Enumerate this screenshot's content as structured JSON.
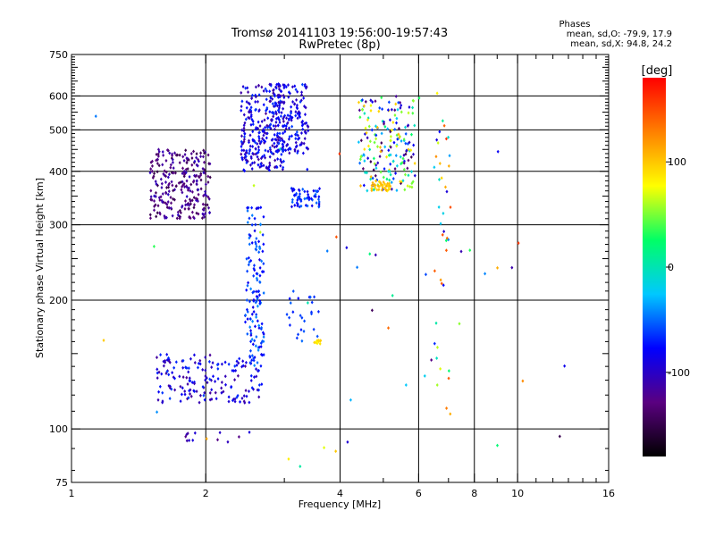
{
  "title": {
    "line1": "Tromsø 20141103 19:56:00-19:57:43",
    "line2": "RwPretec (8p)"
  },
  "stats": {
    "heading": "Phases",
    "o_mode": "mean, sd,O: -79.9, 17.9",
    "x_mode": "mean, sd,X:  94.8, 24.2"
  },
  "chart_data": {
    "type": "scatter",
    "xlabel": "Frequency [MHz]",
    "ylabel": "Stationary phase Virtual Height [km]",
    "x_scale": "log",
    "y_scale": "log",
    "xlim": [
      1,
      16
    ],
    "ylim": [
      75,
      750
    ],
    "xticks": [
      1,
      2,
      4,
      6,
      8,
      10,
      16
    ],
    "xtick_labels": [
      "1",
      "2",
      "4",
      "6",
      "8",
      "10",
      "16"
    ],
    "yticks": [
      75,
      100,
      200,
      300,
      400,
      500,
      600,
      750
    ],
    "ytick_labels": [
      "75",
      "100",
      "200",
      "300",
      "400",
      "500",
      "600",
      "750"
    ],
    "grid_x": [
      2,
      4,
      6,
      8,
      10
    ],
    "grid_y": [
      100,
      200,
      300,
      400,
      500,
      600
    ],
    "colorbar": {
      "label": "[deg]",
      "range": [
        -180,
        180
      ],
      "ticks": [
        100,
        0,
        -100
      ],
      "tick_labels": [
        "100",
        "0",
        "-100"
      ],
      "colors": [
        "#000000",
        "#5a0080",
        "#0000ff",
        "#00c8ff",
        "#00ff66",
        "#ffff00",
        "#ff8000",
        "#ff0000"
      ]
    },
    "clusters": [
      {
        "f": [
          1.5,
          2.05
        ],
        "h": [
          310,
          450
        ],
        "n": 260,
        "phase": [
          -150,
          -100
        ]
      },
      {
        "f": [
          2.4,
          3.0
        ],
        "h": [
          400,
          640
        ],
        "n": 280,
        "phase": [
          -120,
          -60
        ]
      },
      {
        "f": [
          2.85,
          3.4
        ],
        "h": [
          440,
          640
        ],
        "n": 150,
        "phase": [
          -110,
          -60
        ]
      },
      {
        "f": [
          3.1,
          3.6
        ],
        "h": [
          330,
          365
        ],
        "n": 60,
        "phase": [
          -90,
          -50
        ]
      },
      {
        "f": [
          4.4,
          5.9
        ],
        "h": [
          360,
          600
        ],
        "n": 200,
        "phase": [
          -150,
          110
        ]
      },
      {
        "f": [
          4.7,
          5.2
        ],
        "h": [
          360,
          380
        ],
        "n": 40,
        "phase": [
          90,
          110
        ]
      },
      {
        "f": [
          1.55,
          2.7
        ],
        "h": [
          115,
          150
        ],
        "n": 170,
        "phase": [
          -120,
          -60
        ]
      },
      {
        "f": [
          2.45,
          2.7
        ],
        "h": [
          140,
          330
        ],
        "n": 140,
        "phase": [
          -90,
          -40
        ]
      },
      {
        "f": [
          3.0,
          3.6
        ],
        "h": [
          160,
          210
        ],
        "n": 25,
        "phase": [
          -80,
          -50
        ]
      },
      {
        "f": [
          3.5,
          3.65
        ],
        "h": [
          158,
          162
        ],
        "n": 12,
        "phase": [
          80,
          100
        ]
      },
      {
        "f": [
          6.5,
          7.1
        ],
        "h": [
          100,
          620
        ],
        "n": 40,
        "phase": [
          -100,
          160
        ]
      },
      {
        "f": [
          1.8,
          2.6
        ],
        "h": [
          92,
          100
        ],
        "n": 12,
        "phase": [
          -130,
          -90
        ]
      },
      {
        "f": [
          1.1,
          13.0
        ],
        "h": [
          78,
          650
        ],
        "n": 45,
        "phase": [
          -160,
          170
        ]
      }
    ]
  }
}
